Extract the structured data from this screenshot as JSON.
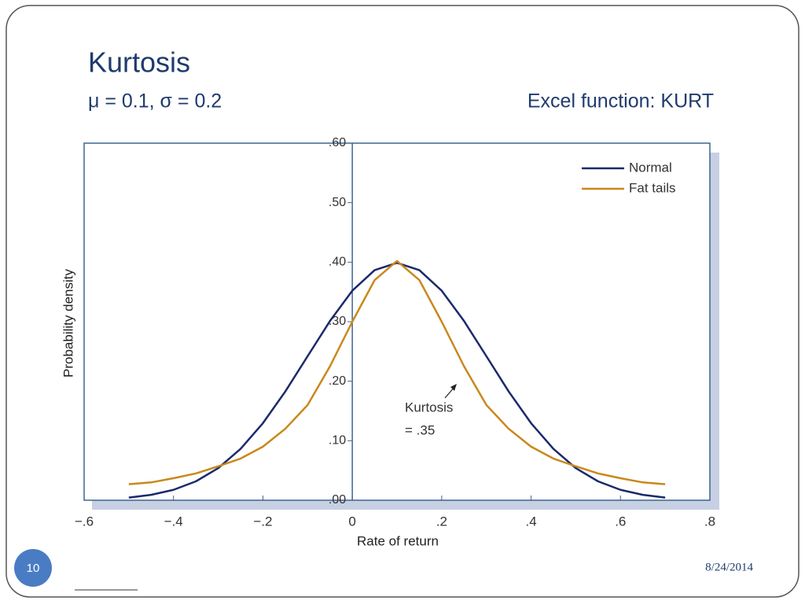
{
  "slide": {
    "title": "Kurtosis",
    "subtitle": "μ = 0.1, σ = 0.2",
    "side_note": "Excel function: KURT",
    "page_number": "10",
    "date": "8/24/2014"
  },
  "chart_data": {
    "type": "line",
    "x_label": "Rate of return",
    "y_label": "Probability density",
    "annotation": [
      "Kurtosis",
      "= .35"
    ],
    "x": [
      -0.5,
      -0.45,
      -0.4,
      -0.35,
      -0.3,
      -0.25,
      -0.2,
      -0.15,
      -0.1,
      -0.05,
      0,
      0.05,
      0.1,
      0.15,
      0.2,
      0.25,
      0.3,
      0.35,
      0.4,
      0.45,
      0.5,
      0.55,
      0.6,
      0.65,
      0.7
    ],
    "series": [
      {
        "name": "Normal",
        "color": "#1b2a6b",
        "values": [
          0.0044,
          0.0091,
          0.0175,
          0.0317,
          0.054,
          0.0863,
          0.1295,
          0.1826,
          0.242,
          0.3011,
          0.3521,
          0.3867,
          0.3989,
          0.3867,
          0.3521,
          0.3011,
          0.242,
          0.1826,
          0.1295,
          0.0863,
          0.054,
          0.0317,
          0.0175,
          0.0091,
          0.0044
        ]
      },
      {
        "name": "Fat tails",
        "color": "#c9881c",
        "values": [
          0.027,
          0.03,
          0.037,
          0.045,
          0.057,
          0.07,
          0.09,
          0.12,
          0.16,
          0.225,
          0.3,
          0.37,
          0.402,
          0.37,
          0.3,
          0.225,
          0.16,
          0.12,
          0.09,
          0.07,
          0.057,
          0.045,
          0.037,
          0.03,
          0.027
        ]
      }
    ],
    "xlim": [
      -0.6,
      0.8
    ],
    "xticks": [
      {
        "value": -0.6,
        "label": "−.6"
      },
      {
        "value": -0.4,
        "label": "−.4"
      },
      {
        "value": -0.2,
        "label": "−.2"
      },
      0,
      {
        "value": 0.2,
        "label": ".2"
      },
      {
        "value": 0.4,
        "label": ".4"
      },
      {
        "value": 0.6,
        "label": ".6"
      },
      {
        "value": 0.8,
        "label": ".8"
      }
    ],
    "ylim": [
      0,
      0.6
    ],
    "yticks": [
      {
        "value": 0,
        "label": ".00"
      },
      {
        "value": 0.1,
        "label": ".10"
      },
      {
        "value": 0.2,
        "label": ".20"
      },
      {
        "value": 0.3,
        "label": ".30"
      },
      {
        "value": 0.4,
        "label": ".40"
      },
      {
        "value": 0.5,
        "label": ".50"
      },
      {
        "value": 0.6,
        "label": ".60"
      }
    ],
    "legend": "top-right",
    "grid": false
  }
}
